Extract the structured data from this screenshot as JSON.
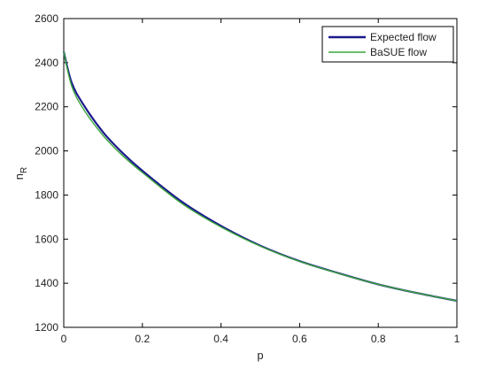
{
  "chart_data": {
    "type": "line",
    "title": "",
    "xlabel": "p",
    "ylabel_main": "n",
    "ylabel_sub": "R",
    "xlim": [
      0,
      1
    ],
    "ylim": [
      1200,
      2600
    ],
    "xticks": [
      "0",
      "0.2",
      "0.4",
      "0.6",
      "0.8",
      "1"
    ],
    "yticks": [
      "1200",
      "1400",
      "1600",
      "1800",
      "2000",
      "2200",
      "2400",
      "2600"
    ],
    "grid": false,
    "legend_position": "top-right",
    "x": [
      0.0,
      0.02,
      0.05,
      0.1,
      0.15,
      0.2,
      0.3,
      0.4,
      0.5,
      0.6,
      0.7,
      0.8,
      0.9,
      1.0
    ],
    "series": [
      {
        "name": "Expected flow",
        "color": "#1a1a8c",
        "values": [
          2450,
          2310,
          2210,
          2085,
          1990,
          1910,
          1770,
          1660,
          1570,
          1500,
          1445,
          1395,
          1355,
          1320
        ]
      },
      {
        "name": "BaSUE flow",
        "color": "#3aa53a",
        "values": [
          2450,
          2295,
          2190,
          2070,
          1978,
          1902,
          1762,
          1655,
          1568,
          1499,
          1444,
          1395,
          1355,
          1320
        ]
      }
    ]
  }
}
